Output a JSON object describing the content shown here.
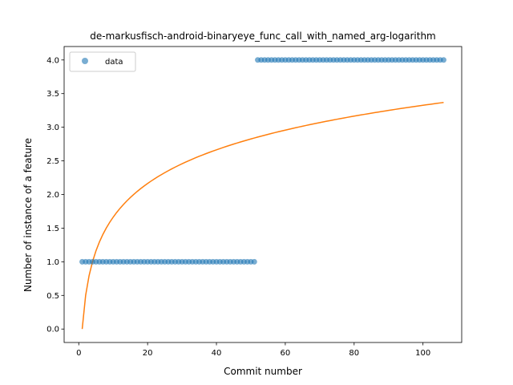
{
  "chart_data": {
    "type": "scatter",
    "title": "de-markusfisch-android-binaryeye_func_call_with_named_arg-logarithm",
    "xlabel": "Commit number",
    "ylabel": "Number of instance of a feature",
    "xlim": [
      -4.25,
      111.25
    ],
    "ylim": [
      -0.2,
      4.2
    ],
    "xticks": [
      0,
      20,
      40,
      60,
      80,
      100
    ],
    "yticks": [
      0.0,
      0.5,
      1.0,
      1.5,
      2.0,
      2.5,
      3.0,
      3.5,
      4.0
    ],
    "xtick_labels": [
      "0",
      "20",
      "40",
      "60",
      "80",
      "100"
    ],
    "ytick_labels": [
      "0.0",
      "0.5",
      "1.0",
      "1.5",
      "2.0",
      "2.5",
      "3.0",
      "3.5",
      "4.0"
    ],
    "grid": false,
    "legend_position": "top-left",
    "series": [
      {
        "name": "data",
        "kind": "scatter",
        "color": "#1f77b4",
        "segments": [
          {
            "x_start": 1,
            "x_end": 51,
            "y": 1.0
          },
          {
            "x_start": 52,
            "x_end": 106,
            "y": 4.0
          }
        ]
      },
      {
        "kind": "line",
        "color": "#ff7f0e",
        "model": "logarithmic",
        "a": 0.7223,
        "b": 0.0,
        "x_start": 1,
        "x_end": 106
      }
    ]
  }
}
